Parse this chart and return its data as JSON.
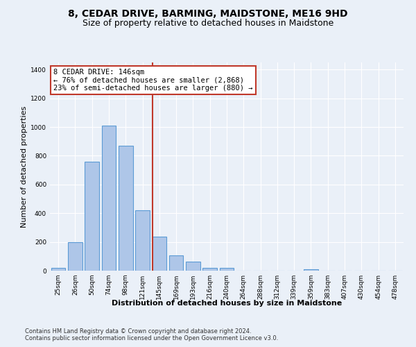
{
  "title": "8, CEDAR DRIVE, BARMING, MAIDSTONE, ME16 9HD",
  "subtitle": "Size of property relative to detached houses in Maidstone",
  "xlabel": "Distribution of detached houses by size in Maidstone",
  "ylabel": "Number of detached properties",
  "categories": [
    "25sqm",
    "26sqm",
    "50sqm",
    "74sqm",
    "98sqm",
    "121sqm",
    "145sqm",
    "169sqm",
    "193sqm",
    "216sqm",
    "240sqm",
    "264sqm",
    "288sqm",
    "312sqm",
    "339sqm",
    "359sqm",
    "383sqm",
    "407sqm",
    "430sqm",
    "454sqm",
    "478sqm"
  ],
  "values": [
    20,
    200,
    760,
    1010,
    870,
    420,
    235,
    105,
    65,
    20,
    20,
    0,
    0,
    0,
    0,
    10,
    0,
    0,
    0,
    0,
    0
  ],
  "bar_color": "#aec6e8",
  "bar_edge_color": "#5b9bd5",
  "vline_x_index": 6,
  "vline_color": "#c0392b",
  "annotation_text": "8 CEDAR DRIVE: 146sqm\n← 76% of detached houses are smaller (2,868)\n23% of semi-detached houses are larger (880) →",
  "annotation_box_color": "#ffffff",
  "annotation_box_edge": "#c0392b",
  "ylim": [
    0,
    1450
  ],
  "yticks": [
    0,
    200,
    400,
    600,
    800,
    1000,
    1200,
    1400
  ],
  "bg_color": "#eaf0f8",
  "plot_bg_color": "#eaf0f8",
  "grid_color": "#ffffff",
  "footer_line1": "Contains HM Land Registry data © Crown copyright and database right 2024.",
  "footer_line2": "Contains public sector information licensed under the Open Government Licence v3.0.",
  "title_fontsize": 10,
  "subtitle_fontsize": 9,
  "axis_label_fontsize": 8,
  "tick_fontsize": 6.5,
  "annotation_fontsize": 7.5,
  "footer_fontsize": 6
}
